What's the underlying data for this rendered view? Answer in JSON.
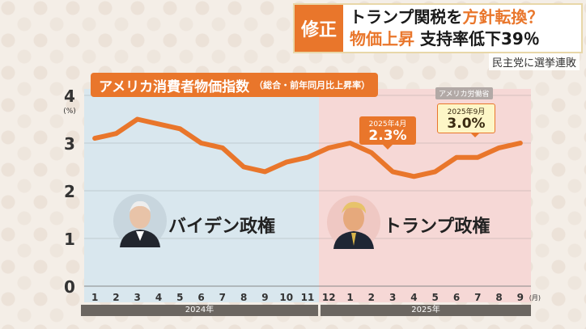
{
  "caption": {
    "tag": "修正",
    "line1_a": "トランプ関税を",
    "line1_b": "方針転換？",
    "line2_a": "物価上昇",
    "line2_b": "支持率低下39％",
    "sub": "民主党に選挙連敗"
  },
  "chart_data": {
    "type": "line",
    "title": "アメリカ消費者物価指数",
    "subtitle": "（総合・前年同月比上昇率）",
    "source": "アメリカ労働省",
    "ylabel": "(%)",
    "ylim": [
      0,
      4
    ],
    "yticks": [
      "0",
      "1",
      "2",
      "3",
      "4"
    ],
    "x": [
      "1",
      "2",
      "3",
      "4",
      "5",
      "6",
      "7",
      "8",
      "9",
      "10",
      "11",
      "12",
      "1",
      "2",
      "3",
      "4",
      "5",
      "6",
      "7",
      "8",
      "9"
    ],
    "xunit": "(月)",
    "year_labels": [
      "2024年",
      "2025年"
    ],
    "series": [
      {
        "values": [
          3.1,
          3.2,
          3.5,
          3.4,
          3.3,
          3.0,
          2.9,
          2.5,
          2.4,
          2.6,
          2.7,
          2.9,
          3.0,
          2.8,
          2.4,
          2.3,
          2.4,
          2.7,
          2.7,
          2.9,
          3.0
        ]
      }
    ],
    "grid": true,
    "annotations": [
      {
        "date": "2025年4月",
        "value": "2.3%"
      },
      {
        "date": "2025年9月",
        "value": "3.0%"
      }
    ],
    "regions": [
      "バイデン政権",
      "トランプ政権"
    ],
    "line_color": "#e9762b"
  }
}
